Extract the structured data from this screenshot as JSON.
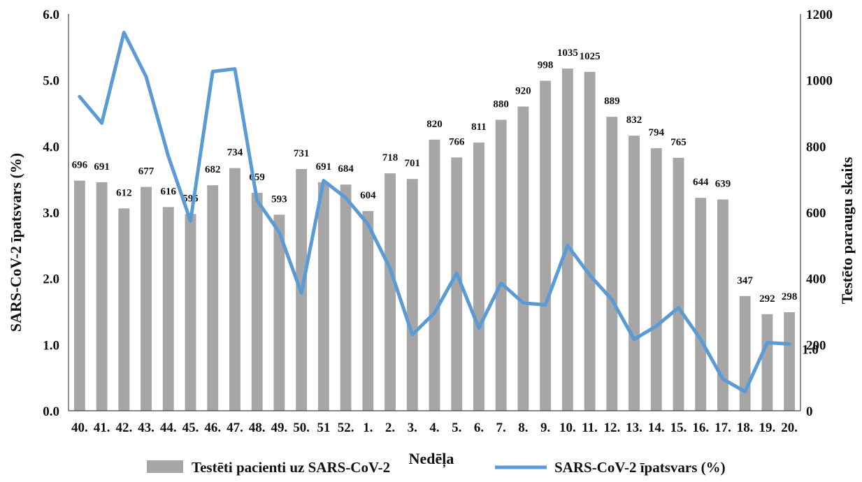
{
  "chart_data": {
    "type": "bar+line",
    "title": "",
    "xlabel": "Nedēļa",
    "ylabel_left": "SARS-CoV-2 īpatsvars (%)",
    "ylabel_right": "Testēto paraugu skaits",
    "ylim_left": [
      0,
      6
    ],
    "ylim_right": [
      0,
      1200
    ],
    "yticks_left": [
      "0.0",
      "1.0",
      "2.0",
      "3.0",
      "4.0",
      "5.0",
      "6.0"
    ],
    "yticks_right": [
      "0",
      "200",
      "400",
      "600",
      "800",
      "1000",
      "1200"
    ],
    "categories": [
      "40.",
      "41.",
      "42.",
      "43.",
      "44.",
      "45.",
      "46.",
      "47.",
      "48.",
      "49.",
      "50.",
      "51",
      "52.",
      "1.",
      "2.",
      "3.",
      "4.",
      "5.",
      "6.",
      "7.",
      "8.",
      "9.",
      "10.",
      "11.",
      "12.",
      "13.",
      "14.",
      "15.",
      "16.",
      "17.",
      "18.",
      "19.",
      "20."
    ],
    "series": [
      {
        "name": "Testēti pacienti uz SARS-CoV-2",
        "kind": "bar",
        "axis": "right",
        "color": "#a6a6a6",
        "values": [
          696,
          691,
          612,
          677,
          616,
          595,
          682,
          734,
          659,
          593,
          731,
          691,
          684,
          604,
          718,
          701,
          820,
          766,
          811,
          880,
          920,
          998,
          1035,
          1025,
          889,
          832,
          794,
          765,
          644,
          639,
          347,
          292,
          298
        ],
        "labels": [
          "696",
          "691",
          "612",
          "677",
          "616",
          "595",
          "682",
          "734",
          "659",
          "593",
          "731",
          "691",
          "684",
          "604",
          "718",
          "701",
          "820",
          "766",
          "811",
          "880",
          "920",
          "998",
          "1035",
          "1025",
          "889",
          "832",
          "794",
          "765",
          "644",
          "639",
          "347",
          "292",
          "298"
        ]
      },
      {
        "name": "SARS-CoV-2 īpatsvars (%)",
        "kind": "line",
        "axis": "left",
        "color": "#5b9bd5",
        "values": [
          4.75,
          4.35,
          5.72,
          5.05,
          3.85,
          2.87,
          5.13,
          5.17,
          3.18,
          2.7,
          1.78,
          3.48,
          3.22,
          2.82,
          2.15,
          1.15,
          1.48,
          2.08,
          1.25,
          1.93,
          1.63,
          1.6,
          2.5,
          2.05,
          1.68,
          1.08,
          1.28,
          1.56,
          1.08,
          0.48,
          0.29,
          1.03,
          1.01
        ],
        "end_label": "1.0"
      }
    ],
    "legend": {
      "position": "bottom"
    }
  }
}
